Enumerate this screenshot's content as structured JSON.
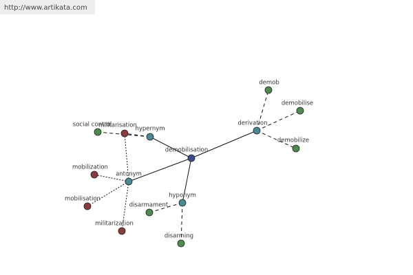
{
  "watermark": "http://www.artikata.com",
  "nodes": [
    {
      "label": "demobilisation"
    },
    {
      "label": "derivation"
    },
    {
      "label": "hypernym"
    },
    {
      "label": "antonym"
    },
    {
      "label": "hyponym"
    },
    {
      "label": "demob"
    },
    {
      "label": "demobilise"
    },
    {
      "label": "demobilize"
    },
    {
      "label": "social control"
    },
    {
      "label": "militarisation"
    },
    {
      "label": "mobilization"
    },
    {
      "label": "mobilisation"
    },
    {
      "label": "militarization"
    },
    {
      "label": "disarmament"
    },
    {
      "label": "disarming"
    }
  ]
}
